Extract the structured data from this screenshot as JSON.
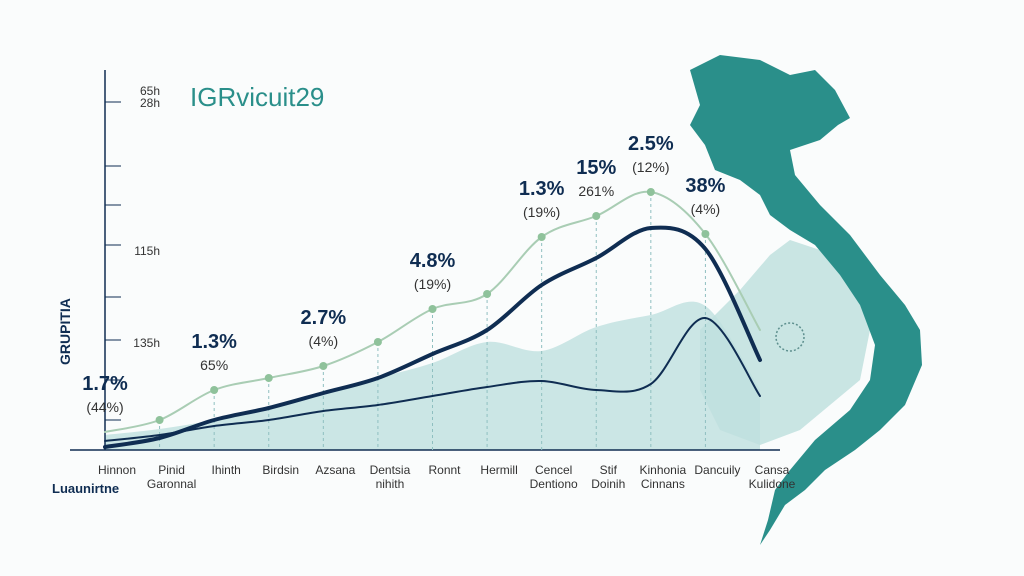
{
  "chart_data": {
    "type": "line",
    "title": "IGRvicuit29",
    "ylabel": "GRUPITIA",
    "xlabel": "Luaunirtne",
    "y_tick_labels": [
      "65h",
      "28h",
      "115h",
      "135h"
    ],
    "categories": [
      "Hinnon",
      "Pinid Garonnal",
      "Ihinth",
      "Birdsin",
      "Azsana",
      "Dentsia nihith",
      "Ronnt",
      "Hermill",
      "Cencel Dentiono",
      "Stif Doinih",
      "Kinhonia Cinnans",
      "Dancuily",
      "Cansa Kulidone"
    ],
    "annotations": [
      {
        "category": "Hinnon",
        "value": "1.7%",
        "sub": "(44%)"
      },
      {
        "category": "Ihinth",
        "value": "1.3%",
        "sub": "65%"
      },
      {
        "category": "Azsana",
        "value": "2.7%",
        "sub": "(4%)"
      },
      {
        "category": "Ronnt",
        "value": "4.8%",
        "sub": "(19%)"
      },
      {
        "category": "Cencel Dentiono",
        "value": "1.3%",
        "sub": "(19%)"
      },
      {
        "category": "Stif Doinih",
        "value": "15%",
        "sub": "261%"
      },
      {
        "category": "Kinhonia Cinnans",
        "value": "2.5%",
        "sub": "(12%)"
      },
      {
        "category": "Dancuily",
        "value": "38%",
        "sub": "(4%)"
      }
    ],
    "series": [
      {
        "values": [
          1,
          4,
          10,
          14,
          19,
          24,
          32,
          40,
          55,
          64,
          74,
          67,
          30
        ]
      },
      {
        "values": [
          6,
          10,
          20,
          24,
          28,
          36,
          47,
          52,
          71,
          78,
          86,
          72,
          40
        ]
      },
      {
        "values": [
          3,
          5,
          8,
          10,
          13,
          15,
          18,
          21,
          23,
          20,
          22,
          44,
          18
        ]
      }
    ],
    "area": {
      "values": [
        5,
        7,
        10,
        14,
        19,
        24,
        29,
        36,
        33,
        41,
        45,
        48,
        20
      ]
    },
    "colors": {
      "primary": "#0f2d52",
      "secondary": "#a9cdb4",
      "area": "#bfe0de",
      "map": "#2a8f8a",
      "map_light": "#bfe0de",
      "title": "#2a8f8a",
      "text": "#0f2d52",
      "label": "#333333",
      "marker": "#8fc29b"
    }
  }
}
